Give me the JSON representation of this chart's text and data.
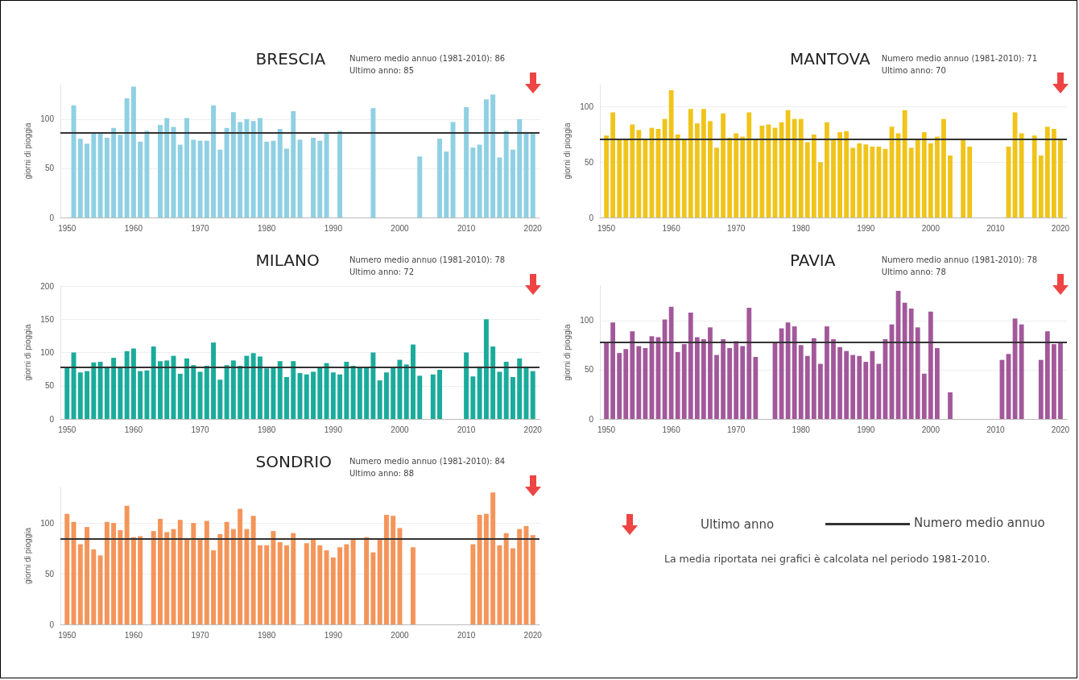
{
  "chart_data": [
    {
      "type": "bar",
      "title": "BRESCIA",
      "annotations": [
        "Numero medio annuo (1981-2010): 86",
        "Ultimo anno: 85"
      ],
      "ylabel": "giorni di pioggia",
      "color": "#8fd0e3",
      "grid": "y",
      "xlim": [
        1949,
        2021
      ],
      "xticks": [
        1950,
        1960,
        1970,
        1980,
        1990,
        2000,
        2010,
        2020
      ],
      "ylim": [
        0,
        135
      ],
      "yticks": [
        0,
        50,
        100
      ],
      "ref_lines": [
        {
          "axis": "y",
          "value": 86,
          "color": "#333333"
        }
      ],
      "x": [
        1951,
        1952,
        1953,
        1954,
        1955,
        1956,
        1957,
        1958,
        1959,
        1960,
        1961,
        1962,
        1963,
        1964,
        1965,
        1966,
        1967,
        1968,
        1969,
        1970,
        1971,
        1972,
        1973,
        1974,
        1975,
        1976,
        1977,
        1978,
        1979,
        1980,
        1981,
        1982,
        1983,
        1984,
        1985,
        1986,
        1987,
        1988,
        1989,
        1990,
        1991,
        1992,
        1993,
        1994,
        1995,
        1996,
        1997,
        1998,
        1999,
        2000,
        2001,
        2002,
        2003,
        2004,
        2005,
        2006,
        2007,
        2008,
        2009,
        2010,
        2011,
        2012,
        2013,
        2014,
        2015,
        2016,
        2017,
        2018,
        2019,
        2020
      ],
      "values": [
        114,
        80,
        75,
        86,
        86,
        81,
        91,
        84,
        121,
        133,
        77,
        88,
        null,
        94,
        101,
        92,
        74,
        101,
        79,
        78,
        78,
        114,
        69,
        91,
        107,
        97,
        100,
        98,
        101,
        77,
        78,
        90,
        70,
        108,
        79,
        null,
        81,
        78,
        86,
        null,
        88,
        null,
        null,
        null,
        null,
        111,
        null,
        null,
        null,
        null,
        null,
        null,
        62,
        null,
        null,
        80,
        67,
        97,
        null,
        112,
        71,
        74,
        120,
        125,
        61,
        88,
        69,
        100,
        87,
        85
      ]
    },
    {
      "type": "bar",
      "title": "MANTOVA",
      "annotations": [
        "Numero medio annuo (1981-2010): 71",
        "Ultimo anno: 70"
      ],
      "ylabel": "giorni di pioggia",
      "color": "#f0c419",
      "grid": "y",
      "xlim": [
        1949,
        2021
      ],
      "xticks": [
        1950,
        1960,
        1970,
        1980,
        1990,
        2000,
        2010,
        2020
      ],
      "ylim": [
        0,
        120
      ],
      "yticks": [
        0,
        50,
        100
      ],
      "ref_lines": [
        {
          "axis": "y",
          "value": 71,
          "color": "#333333"
        }
      ],
      "x": [
        1950,
        1951,
        1952,
        1953,
        1954,
        1955,
        1956,
        1957,
        1958,
        1959,
        1960,
        1961,
        1962,
        1963,
        1964,
        1965,
        1966,
        1967,
        1968,
        1969,
        1970,
        1971,
        1972,
        1973,
        1974,
        1975,
        1976,
        1977,
        1978,
        1979,
        1980,
        1981,
        1982,
        1983,
        1984,
        1985,
        1986,
        1987,
        1988,
        1989,
        1990,
        1991,
        1992,
        1993,
        1994,
        1995,
        1996,
        1997,
        1998,
        1999,
        2000,
        2001,
        2002,
        2003,
        2004,
        2005,
        2006,
        2007,
        2008,
        2009,
        2010,
        2011,
        2012,
        2013,
        2014,
        2015,
        2016,
        2017,
        2018,
        2019,
        2020
      ],
      "values": [
        74,
        95,
        71,
        71,
        84,
        79,
        71,
        81,
        80,
        89,
        115,
        75,
        71,
        98,
        85,
        98,
        87,
        63,
        94,
        72,
        76,
        73,
        95,
        70,
        83,
        84,
        81,
        86,
        97,
        89,
        89,
        68,
        75,
        50,
        86,
        70,
        77,
        78,
        63,
        67,
        66,
        64,
        64,
        62,
        82,
        76,
        97,
        63,
        71,
        77,
        67,
        73,
        89,
        56,
        null,
        70,
        64,
        null,
        null,
        null,
        null,
        null,
        64,
        95,
        76,
        null,
        74,
        56,
        82,
        80,
        70
      ]
    },
    {
      "type": "bar",
      "title": "MILANO",
      "annotations": [
        "Numero medio annuo (1981-2010): 78",
        "Ultimo anno: 72"
      ],
      "ylabel": "giorni di pioggia",
      "color": "#1aab9b",
      "grid": "y",
      "xlim": [
        1949,
        2021
      ],
      "xticks": [
        1950,
        1960,
        1970,
        1980,
        1990,
        2000,
        2010,
        2020
      ],
      "ylim": [
        0,
        200
      ],
      "yticks": [
        0,
        50,
        100,
        150,
        200
      ],
      "ref_lines": [
        {
          "axis": "y",
          "value": 78,
          "color": "#333333"
        }
      ],
      "x": [
        1950,
        1951,
        1952,
        1953,
        1954,
        1955,
        1956,
        1957,
        1958,
        1959,
        1960,
        1961,
        1962,
        1963,
        1964,
        1965,
        1966,
        1967,
        1968,
        1969,
        1970,
        1971,
        1972,
        1973,
        1974,
        1975,
        1976,
        1977,
        1978,
        1979,
        1980,
        1981,
        1982,
        1983,
        1984,
        1985,
        1986,
        1987,
        1988,
        1989,
        1990,
        1991,
        1992,
        1993,
        1994,
        1995,
        1996,
        1997,
        1998,
        1999,
        2000,
        2001,
        2002,
        2003,
        2004,
        2005,
        2006,
        2007,
        2008,
        2009,
        2010,
        2011,
        2012,
        2013,
        2014,
        2015,
        2016,
        2017,
        2018,
        2019,
        2020
      ],
      "values": [
        78,
        100,
        70,
        72,
        85,
        86,
        79,
        92,
        79,
        102,
        106,
        72,
        73,
        109,
        87,
        88,
        95,
        68,
        91,
        81,
        71,
        80,
        115,
        59,
        81,
        88,
        80,
        95,
        99,
        94,
        76,
        78,
        87,
        63,
        87,
        69,
        67,
        71,
        78,
        84,
        70,
        67,
        86,
        80,
        78,
        78,
        100,
        58,
        70,
        77,
        89,
        82,
        112,
        65,
        null,
        67,
        74,
        null,
        null,
        null,
        100,
        64,
        79,
        150,
        109,
        71,
        86,
        63,
        91,
        79,
        72
      ]
    },
    {
      "type": "bar",
      "title": "PAVIA",
      "annotations": [
        "Numero medio annuo (1981-2010): 78",
        "Ultimo anno: 78"
      ],
      "ylabel": "giorni di pioggia",
      "color": "#a2589a",
      "grid": "y",
      "xlim": [
        1949,
        2021
      ],
      "xticks": [
        1950,
        1960,
        1970,
        1980,
        1990,
        2000,
        2010,
        2020
      ],
      "ylim": [
        0,
        135
      ],
      "yticks": [
        0,
        50,
        100
      ],
      "ref_lines": [
        {
          "axis": "y",
          "value": 78,
          "color": "#333333"
        }
      ],
      "x": [
        1950,
        1951,
        1952,
        1953,
        1954,
        1955,
        1956,
        1957,
        1958,
        1959,
        1960,
        1961,
        1962,
        1963,
        1964,
        1965,
        1966,
        1967,
        1968,
        1969,
        1970,
        1971,
        1972,
        1973,
        1974,
        1975,
        1976,
        1977,
        1978,
        1979,
        1980,
        1981,
        1982,
        1983,
        1984,
        1985,
        1986,
        1987,
        1988,
        1989,
        1990,
        1991,
        1992,
        1993,
        1994,
        1995,
        1996,
        1997,
        1998,
        1999,
        2000,
        2001,
        2002,
        2003,
        2004,
        2005,
        2006,
        2007,
        2008,
        2009,
        2010,
        2011,
        2012,
        2013,
        2014,
        2015,
        2016,
        2017,
        2018,
        2019,
        2020
      ],
      "values": [
        77,
        98,
        67,
        71,
        89,
        74,
        72,
        84,
        83,
        101,
        114,
        68,
        76,
        108,
        83,
        81,
        93,
        65,
        81,
        72,
        79,
        74,
        113,
        63,
        null,
        null,
        77,
        92,
        98,
        94,
        75,
        64,
        82,
        56,
        94,
        81,
        73,
        69,
        65,
        64,
        58,
        69,
        56,
        81,
        96,
        130,
        118,
        112,
        93,
        46,
        109,
        72,
        null,
        27,
        null,
        null,
        null,
        null,
        null,
        null,
        null,
        60,
        66,
        102,
        96,
        null,
        null,
        60,
        89,
        76,
        78
      ]
    },
    {
      "type": "bar",
      "title": "SONDRIO",
      "annotations": [
        "Numero medio annuo (1981-2010): 84",
        "Ultimo anno: 88"
      ],
      "ylabel": "giorni di pioggia",
      "color": "#f4955a",
      "grid": "y",
      "xlim": [
        1949,
        2021
      ],
      "xticks": [
        1950,
        1960,
        1970,
        1980,
        1990,
        2000,
        2010,
        2020
      ],
      "ylim": [
        0,
        135
      ],
      "yticks": [
        0,
        50,
        100
      ],
      "ref_lines": [
        {
          "axis": "y",
          "value": 84,
          "color": "#333333"
        }
      ],
      "x": [
        1950,
        1951,
        1952,
        1953,
        1954,
        1955,
        1956,
        1957,
        1958,
        1959,
        1960,
        1961,
        1962,
        1963,
        1964,
        1965,
        1966,
        1967,
        1968,
        1969,
        1970,
        1971,
        1972,
        1973,
        1974,
        1975,
        1976,
        1977,
        1978,
        1979,
        1980,
        1981,
        1982,
        1983,
        1984,
        1985,
        1986,
        1987,
        1988,
        1989,
        1990,
        1991,
        1992,
        1993,
        1994,
        1995,
        1996,
        1997,
        1998,
        1999,
        2000,
        2001,
        2002,
        2003,
        2004,
        2005,
        2006,
        2007,
        2008,
        2009,
        2010,
        2011,
        2012,
        2013,
        2014,
        2015,
        2016,
        2017,
        2018,
        2019,
        2020
      ],
      "values": [
        109,
        101,
        79,
        96,
        74,
        68,
        101,
        100,
        93,
        117,
        86,
        87,
        null,
        92,
        104,
        91,
        94,
        103,
        85,
        100,
        84,
        102,
        73,
        89,
        101,
        94,
        114,
        94,
        107,
        78,
        78,
        92,
        81,
        78,
        90,
        null,
        80,
        84,
        78,
        73,
        66,
        76,
        79,
        84,
        null,
        86,
        71,
        84,
        108,
        107,
        95,
        null,
        76,
        null,
        null,
        null,
        null,
        null,
        null,
        null,
        null,
        79,
        108,
        109,
        130,
        78,
        90,
        75,
        94,
        97,
        88
      ]
    },
    {
      "type": "other",
      "annotations": [
        "Ultimo anno",
        "Numero medio annuo",
        "La media riportata nei grafici è calcolata nel periodo 1981-2010."
      ]
    }
  ]
}
